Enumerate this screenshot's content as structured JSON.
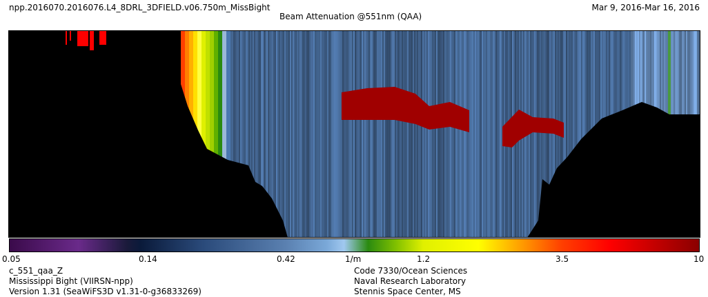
{
  "header": {
    "filename": "npp.2016070.2016076.L4_8DRL_3DFIELD.v06.750m_MissBight",
    "date_range": "Mar  9, 2016-Mar 16, 2016",
    "title": "Beam Attenuation @551nm (QAA)"
  },
  "footer": {
    "left": [
      "c_551_qaa_Z",
      "Mississippi Bight (VIIRSN-npp)",
      "Version 1.31 (SeaWiFS3D v1.31-0-g36833269)"
    ],
    "right": [
      "Code 7330/Ocean Sciences",
      "Naval Research Laboratory",
      "Stennis Space Center, MS"
    ]
  },
  "chart_data": {
    "type": "heatmap",
    "title": "Beam Attenuation @551nm (QAA)",
    "colorbar": {
      "scale": "log",
      "range": [
        0.05,
        10
      ],
      "units": "1/m",
      "ticks": [
        {
          "value": 0.05,
          "label": "0.05"
        },
        {
          "value": 0.14,
          "label": "0.14"
        },
        {
          "value": 0.42,
          "label": "0.42"
        },
        {
          "value": 1.2,
          "label": "1.2"
        },
        {
          "value": 3.5,
          "label": "3.5"
        },
        {
          "value": 10,
          "label": "10"
        }
      ]
    },
    "notes_values": {
      "background_water": 0.3,
      "high_layer": 10,
      "nearshore_surface": 2.5
    }
  }
}
